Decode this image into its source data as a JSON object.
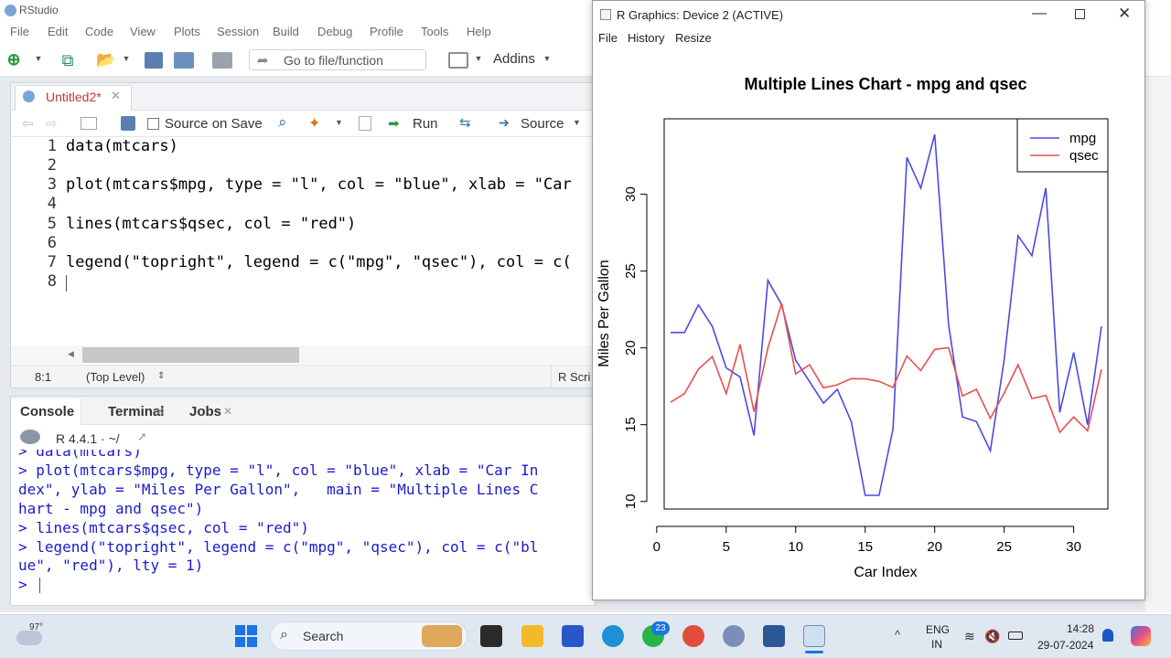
{
  "app": {
    "title": "RStudio"
  },
  "menu": [
    "File",
    "Edit",
    "Code",
    "View",
    "Plots",
    "Session",
    "Build",
    "Debug",
    "Profile",
    "Tools",
    "Help"
  ],
  "toolbar": {
    "goto_label": "Go to file/function",
    "addins_label": "Addins"
  },
  "editor": {
    "tab_label": "Untitled2*",
    "source_on_save": "Source on Save",
    "run_label": "Run",
    "source_label": "Source",
    "lines": [
      "data(mtcars)",
      "",
      "plot(mtcars$mpg, type = \"l\", col = \"blue\", xlab = \"Car",
      "",
      "lines(mtcars$qsec, col = \"red\")",
      "",
      "legend(\"topright\", legend = c(\"mpg\", \"qsec\"), col = c(",
      ""
    ],
    "line_numbers": [
      "1",
      "2",
      "3",
      "4",
      "5",
      "6",
      "7",
      "8"
    ],
    "status_position": "8:1",
    "status_scope": "(Top Level)",
    "status_type": "R Scri"
  },
  "console": {
    "tabs": [
      "Console",
      "Terminal",
      "Jobs"
    ],
    "r_version": "R 4.4.1 · ~/",
    "lines": [
      "> data(mtcars)",
      "> plot(mtcars$mpg, type = \"l\", col = \"blue\", xlab = \"Car In",
      "dex\", ylab = \"Miles Per Gallon\",   main = \"Multiple Lines C",
      "hart - mpg and qsec\")",
      "> lines(mtcars$qsec, col = \"red\")",
      "> legend(\"topright\", legend = c(\"mpg\", \"qsec\"), col = c(\"bl",
      "ue\", \"red\"), lty = 1)",
      "> "
    ]
  },
  "graphics": {
    "window_title": "R Graphics: Device 2 (ACTIVE)",
    "menu": [
      "File",
      "History",
      "Resize"
    ]
  },
  "chart_data": {
    "type": "line",
    "title": "Multiple Lines Chart - mpg and qsec",
    "xlabel": "Car Index",
    "ylabel": "Miles Per Gallon",
    "xlim": [
      1,
      32
    ],
    "ylim": [
      10.4,
      33.9
    ],
    "xticks": [
      0,
      5,
      10,
      15,
      20,
      25,
      30
    ],
    "yticks": [
      10,
      15,
      20,
      25,
      30
    ],
    "legend_position": "top-right",
    "series": [
      {
        "name": "mpg",
        "color": "#4a4ae6",
        "values": [
          21.0,
          21.0,
          22.8,
          21.4,
          18.7,
          18.1,
          14.3,
          24.4,
          22.8,
          19.2,
          17.8,
          16.4,
          17.3,
          15.2,
          10.4,
          10.4,
          14.7,
          32.4,
          30.4,
          33.9,
          21.5,
          15.5,
          15.2,
          13.3,
          19.2,
          27.3,
          26.0,
          30.4,
          15.8,
          19.7,
          15.0,
          21.4
        ]
      },
      {
        "name": "qsec",
        "color": "#e65050",
        "values": [
          16.46,
          17.02,
          18.61,
          19.44,
          17.02,
          20.22,
          15.84,
          20.0,
          22.9,
          18.3,
          18.9,
          17.4,
          17.6,
          18.0,
          17.98,
          17.82,
          17.42,
          19.47,
          18.52,
          19.9,
          20.01,
          16.87,
          17.3,
          15.41,
          17.05,
          18.9,
          16.7,
          16.9,
          14.5,
          15.5,
          14.6,
          18.6
        ]
      }
    ]
  },
  "taskbar": {
    "weather": "97°",
    "search_placeholder": "Search",
    "whatsapp_badge": "23",
    "lang": "ENG",
    "region": "IN",
    "time": "14:28",
    "date": "29-07-2024"
  }
}
